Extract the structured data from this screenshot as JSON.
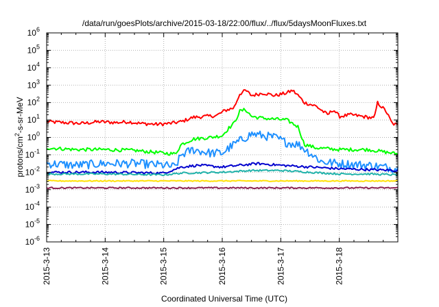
{
  "chart_data": {
    "type": "line",
    "title": "/data/run/goesPlots/archive/2015-03-18/22:00/flux/../flux/5daysMoonFluxes.txt",
    "xlabel": "Coordinated Universal Time (UTC)",
    "ylabel_parts": {
      "pre": "protons/cm",
      "sup": "2",
      "post": "-s-sr-MeV"
    },
    "x_range": [
      0,
      6
    ],
    "x_ticks": [
      {
        "x": 0,
        "label": "2015-3-13"
      },
      {
        "x": 1,
        "label": "2015-3-14"
      },
      {
        "x": 2,
        "label": "2015-3-15"
      },
      {
        "x": 3,
        "label": "2015-3-16"
      },
      {
        "x": 4,
        "label": "2015-3-17"
      },
      {
        "x": 5,
        "label": "2015-3-18"
      }
    ],
    "y_scale": "log",
    "y_range_exp": [
      -6,
      6
    ],
    "y_ticks": [
      {
        "exp": -6,
        "base": "10",
        "sup": "-6"
      },
      {
        "exp": -5,
        "base": "10",
        "sup": "-5"
      },
      {
        "exp": -4,
        "base": "10",
        "sup": "-4"
      },
      {
        "exp": -3,
        "base": "10",
        "sup": "-3"
      },
      {
        "exp": -2,
        "base": "10",
        "sup": "-2"
      },
      {
        "exp": -1,
        "base": "10",
        "sup": "-1"
      },
      {
        "exp": 0,
        "base": "10",
        "sup": "0"
      },
      {
        "exp": 1,
        "base": "10",
        "sup": "1"
      },
      {
        "exp": 2,
        "base": "10",
        "sup": "2"
      },
      {
        "exp": 3,
        "base": "10",
        "sup": "3"
      },
      {
        "exp": 4,
        "base": "10",
        "sup": "4"
      },
      {
        "exp": 5,
        "base": "10",
        "sup": "5"
      },
      {
        "exp": 6,
        "base": "10",
        "sup": "6"
      }
    ],
    "grid": true,
    "series": [
      {
        "color": "#ff0000",
        "width": 2,
        "noise": 0.1,
        "points": [
          [
            0.0,
            0.9
          ],
          [
            0.3,
            0.85
          ],
          [
            0.6,
            0.8
          ],
          [
            0.9,
            0.9
          ],
          [
            1.2,
            0.85
          ],
          [
            1.4,
            0.9
          ],
          [
            1.6,
            0.8
          ],
          [
            1.9,
            0.75
          ],
          [
            2.1,
            0.8
          ],
          [
            2.3,
            0.9
          ],
          [
            2.5,
            1.15
          ],
          [
            2.7,
            1.2
          ],
          [
            2.9,
            1.25
          ],
          [
            3.05,
            1.55
          ],
          [
            3.2,
            1.7
          ],
          [
            3.3,
            2.5
          ],
          [
            3.4,
            2.7
          ],
          [
            3.5,
            2.4
          ],
          [
            3.7,
            2.55
          ],
          [
            3.9,
            2.4
          ],
          [
            4.1,
            2.55
          ],
          [
            4.2,
            2.7
          ],
          [
            4.3,
            2.4
          ],
          [
            4.4,
            2.0
          ],
          [
            4.6,
            1.8
          ],
          [
            4.8,
            1.3
          ],
          [
            4.9,
            1.6
          ],
          [
            5.0,
            1.2
          ],
          [
            5.2,
            1.3
          ],
          [
            5.4,
            1.2
          ],
          [
            5.6,
            1.1
          ],
          [
            5.65,
            2.0
          ],
          [
            5.8,
            1.5
          ],
          [
            5.9,
            0.8
          ],
          [
            6.0,
            0.7
          ]
        ]
      },
      {
        "color": "#00ff00",
        "width": 2,
        "noise": 0.1,
        "points": [
          [
            0.0,
            -0.6
          ],
          [
            0.5,
            -0.7
          ],
          [
            1.0,
            -0.7
          ],
          [
            1.5,
            -0.75
          ],
          [
            2.0,
            -0.9
          ],
          [
            2.2,
            -0.95
          ],
          [
            2.3,
            -0.4
          ],
          [
            2.5,
            -0.1
          ],
          [
            2.8,
            0.0
          ],
          [
            3.0,
            0.1
          ],
          [
            3.1,
            0.5
          ],
          [
            3.2,
            0.8
          ],
          [
            3.3,
            1.5
          ],
          [
            3.4,
            1.6
          ],
          [
            3.5,
            1.2
          ],
          [
            3.7,
            1.1
          ],
          [
            3.9,
            1.05
          ],
          [
            4.1,
            1.0
          ],
          [
            4.3,
            0.6
          ],
          [
            4.4,
            -0.4
          ],
          [
            4.6,
            -0.6
          ],
          [
            5.0,
            -0.7
          ],
          [
            5.5,
            -0.7
          ],
          [
            6.0,
            -0.95
          ]
        ]
      },
      {
        "color": "#1e90ff",
        "width": 2,
        "noise": 0.25,
        "points": [
          [
            0.0,
            -1.5
          ],
          [
            0.5,
            -1.6
          ],
          [
            1.0,
            -1.5
          ],
          [
            1.5,
            -1.5
          ],
          [
            2.0,
            -1.6
          ],
          [
            2.2,
            -1.7
          ],
          [
            2.3,
            -1.0
          ],
          [
            2.5,
            -0.7
          ],
          [
            2.8,
            -0.9
          ],
          [
            3.0,
            -0.9
          ],
          [
            3.2,
            -0.4
          ],
          [
            3.4,
            0.0
          ],
          [
            3.5,
            0.2
          ],
          [
            3.7,
            0.1
          ],
          [
            3.9,
            0.0
          ],
          [
            4.1,
            -0.3
          ],
          [
            4.3,
            -0.4
          ],
          [
            4.5,
            -0.9
          ],
          [
            4.7,
            -1.4
          ],
          [
            5.0,
            -1.5
          ],
          [
            5.5,
            -1.6
          ],
          [
            6.0,
            -1.8
          ]
        ]
      },
      {
        "color": "#0000cd",
        "width": 2,
        "noise": 0.07,
        "points": [
          [
            0.0,
            -2.0
          ],
          [
            1.0,
            -2.0
          ],
          [
            2.0,
            -2.05
          ],
          [
            2.3,
            -1.7
          ],
          [
            2.6,
            -1.6
          ],
          [
            3.0,
            -1.7
          ],
          [
            3.3,
            -1.6
          ],
          [
            3.6,
            -1.5
          ],
          [
            4.0,
            -1.6
          ],
          [
            4.5,
            -1.7
          ],
          [
            5.0,
            -1.8
          ],
          [
            5.5,
            -1.85
          ],
          [
            6.0,
            -1.9
          ]
        ]
      },
      {
        "color": "#20b2aa",
        "width": 2,
        "noise": 0.05,
        "points": [
          [
            0.0,
            -2.1
          ],
          [
            1.0,
            -2.1
          ],
          [
            2.0,
            -2.15
          ],
          [
            2.3,
            -2.05
          ],
          [
            3.0,
            -2.0
          ],
          [
            3.5,
            -1.9
          ],
          [
            4.0,
            -1.9
          ],
          [
            4.5,
            -2.0
          ],
          [
            5.0,
            -2.1
          ],
          [
            5.5,
            -2.1
          ],
          [
            6.0,
            -2.15
          ]
        ]
      },
      {
        "color": "#ffe000",
        "width": 2,
        "noise": 0.03,
        "points": [
          [
            0.0,
            -2.5
          ],
          [
            2.0,
            -2.5
          ],
          [
            3.0,
            -2.5
          ],
          [
            4.0,
            -2.5
          ],
          [
            6.0,
            -2.5
          ]
        ]
      },
      {
        "color": "#8b2252",
        "width": 2,
        "noise": 0.04,
        "points": [
          [
            0.0,
            -2.9
          ],
          [
            2.0,
            -2.9
          ],
          [
            3.0,
            -2.9
          ],
          [
            4.0,
            -2.9
          ],
          [
            6.0,
            -2.9
          ]
        ]
      }
    ]
  }
}
